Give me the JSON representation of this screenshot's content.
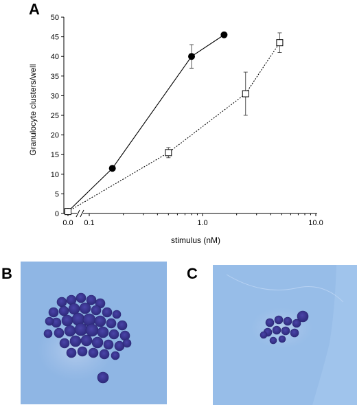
{
  "panels": {
    "a": "A",
    "b": "B",
    "c": "C"
  },
  "chart_data": {
    "type": "line",
    "xlabel": "stimulus  (nM)",
    "ylabel": "Granulocyte clusters/well",
    "xscale": "log (broken axis after 0.0)",
    "xticks": [
      "0.0",
      "0.1",
      "1.0",
      "10.0"
    ],
    "yticks": [
      "0",
      "5",
      "10",
      "15",
      "20",
      "25",
      "30",
      "35",
      "40",
      "45",
      "50"
    ],
    "ylim": [
      0,
      50
    ],
    "grid": false,
    "legend": "none",
    "series": [
      {
        "marker": "filled-circle",
        "line": "solid",
        "points": [
          {
            "x": 0.0,
            "y": 0.5
          },
          {
            "x": 0.16,
            "y": 11.5
          },
          {
            "x": 0.8,
            "y": 40,
            "err": 3
          },
          {
            "x": 1.55,
            "y": 45.5
          }
        ]
      },
      {
        "marker": "open-square",
        "line": "dotted",
        "points": [
          {
            "x": 0.0,
            "y": 0.5
          },
          {
            "x": 0.5,
            "y": 15.5,
            "err": 1.3
          },
          {
            "x": 2.4,
            "y": 30.5,
            "err": 5.5
          },
          {
            "x": 4.8,
            "y": 43.5,
            "err": 2.5
          }
        ]
      }
    ]
  },
  "micrographs": [
    {
      "panel": "B",
      "description": "large granulocyte cluster",
      "background": "#8fb6e4",
      "cell_color": "#3a3490"
    },
    {
      "panel": "C",
      "description": "small granulocyte cluster",
      "background": "#97bde8",
      "cell_color": "#3a3490"
    }
  ]
}
